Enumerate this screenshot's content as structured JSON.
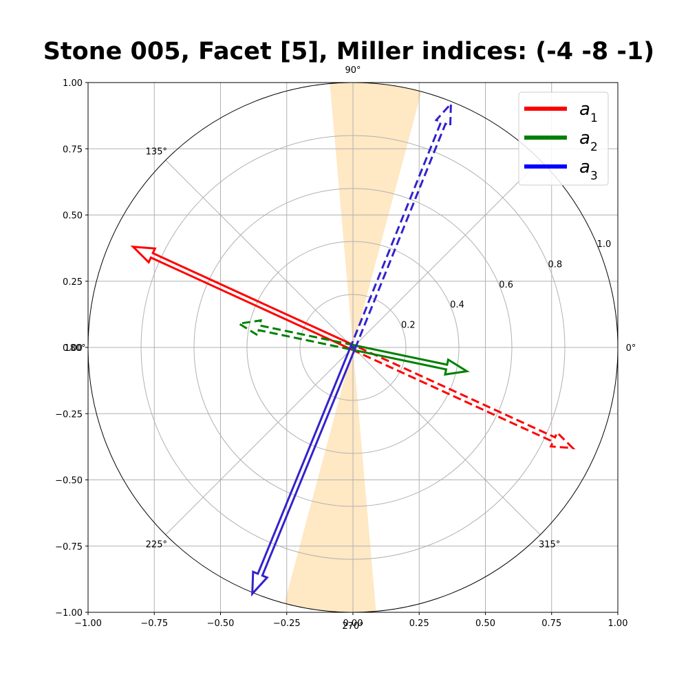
{
  "chart_data": {
    "type": "polar-vector",
    "title": "Stone 005, Facet [5], Miller indices: (-4  -8  -1)",
    "cartesian_axes": {
      "xlim": [
        -1.0,
        1.0
      ],
      "ylim": [
        -1.0,
        1.0
      ],
      "x_ticks": [
        "−1.00",
        "−0.75",
        "−0.50",
        "−0.25",
        "0.00",
        "0.25",
        "0.50",
        "0.75",
        "1.00"
      ],
      "y_ticks": [
        "1.00",
        "0.75",
        "0.50",
        "0.25",
        "0.00",
        "−0.25",
        "−0.50",
        "−0.75",
        "−1.00"
      ],
      "grid": true
    },
    "polar_axes": {
      "rmax": 1.0,
      "radial_ticks": [
        "0.2",
        "0.4",
        "0.6",
        "0.8",
        "1.0"
      ],
      "angle_ticks": [
        "0°",
        "90°",
        "135°",
        "180°",
        "225°",
        "270°",
        "315°"
      ],
      "grid": true
    },
    "shaded_wedges": [
      {
        "theta_deg": [
          75,
          95
        ],
        "color": "#ffe8c4"
      },
      {
        "theta_deg": [
          255,
          275
        ],
        "color": "#ffe8c4"
      }
    ],
    "legend": {
      "position": "upper right",
      "entries": [
        {
          "label": "a",
          "subscript": "1",
          "color": "#ff0000"
        },
        {
          "label": "a",
          "subscript": "2",
          "color": "#008000"
        },
        {
          "label": "a",
          "subscript": "3",
          "color": "#0000ff"
        }
      ]
    },
    "vectors": [
      {
        "series": "a1",
        "style": "solid",
        "color": "#ff0000",
        "end": [
          -0.83,
          0.38
        ]
      },
      {
        "series": "a1",
        "style": "dashed",
        "color": "#ff0000",
        "end": [
          0.83,
          -0.38
        ]
      },
      {
        "series": "a2",
        "style": "solid",
        "color": "#008000",
        "end": [
          0.43,
          -0.09
        ]
      },
      {
        "series": "a2",
        "style": "dashed",
        "color": "#008000",
        "end": [
          -0.43,
          0.09
        ]
      },
      {
        "series": "a3",
        "style": "solid",
        "color": "#3322cc",
        "end": [
          -0.38,
          -0.93
        ]
      },
      {
        "series": "a3",
        "style": "dashed",
        "color": "#3322cc",
        "end": [
          0.37,
          0.92
        ]
      }
    ]
  }
}
